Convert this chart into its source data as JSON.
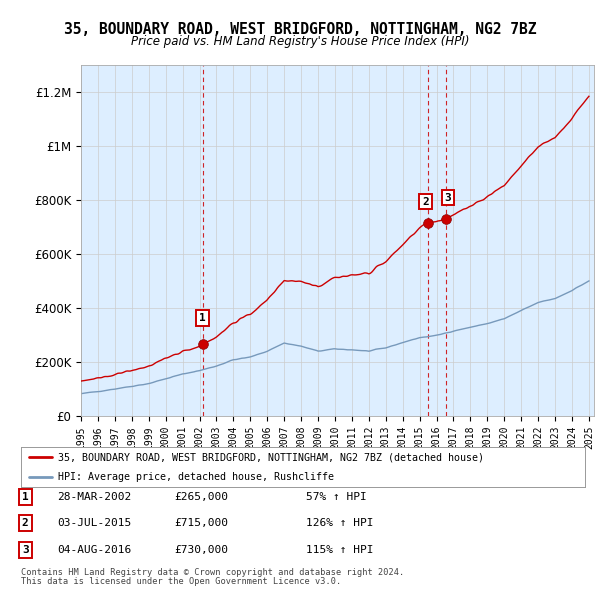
{
  "title": "35, BOUNDARY ROAD, WEST BRIDGFORD, NOTTINGHAM, NG2 7BZ",
  "subtitle": "Price paid vs. HM Land Registry's House Price Index (HPI)",
  "ylim": [
    0,
    1300000
  ],
  "yticks": [
    0,
    200000,
    400000,
    600000,
    800000,
    1000000,
    1200000
  ],
  "ytick_labels": [
    "£0",
    "£200K",
    "£400K",
    "£600K",
    "£800K",
    "£1M",
    "£1.2M"
  ],
  "red_line_color": "#cc0000",
  "blue_line_color": "#7799bb",
  "sale_marker_color": "#cc0000",
  "dashed_line_color": "#cc0000",
  "grid_color": "#cccccc",
  "background_color": "#ffffff",
  "chart_bg_color": "#ddeeff",
  "legend_label_red": "35, BOUNDARY ROAD, WEST BRIDGFORD, NOTTINGHAM, NG2 7BZ (detached house)",
  "legend_label_blue": "HPI: Average price, detached house, Rushcliffe",
  "sale1_year": 2002.23,
  "sale1_price": 265000,
  "sale2_year": 2015.5,
  "sale2_price": 715000,
  "sale3_year": 2016.58,
  "sale3_price": 730000,
  "table_rows": [
    {
      "num": "1",
      "date": "28-MAR-2002",
      "price": "£265,000",
      "hpi": "57% ↑ HPI"
    },
    {
      "num": "2",
      "date": "03-JUL-2015",
      "price": "£715,000",
      "hpi": "126% ↑ HPI"
    },
    {
      "num": "3",
      "date": "04-AUG-2016",
      "price": "£730,000",
      "hpi": "115% ↑ HPI"
    }
  ],
  "footnote1": "Contains HM Land Registry data © Crown copyright and database right 2024.",
  "footnote2": "This data is licensed under the Open Government Licence v3.0."
}
